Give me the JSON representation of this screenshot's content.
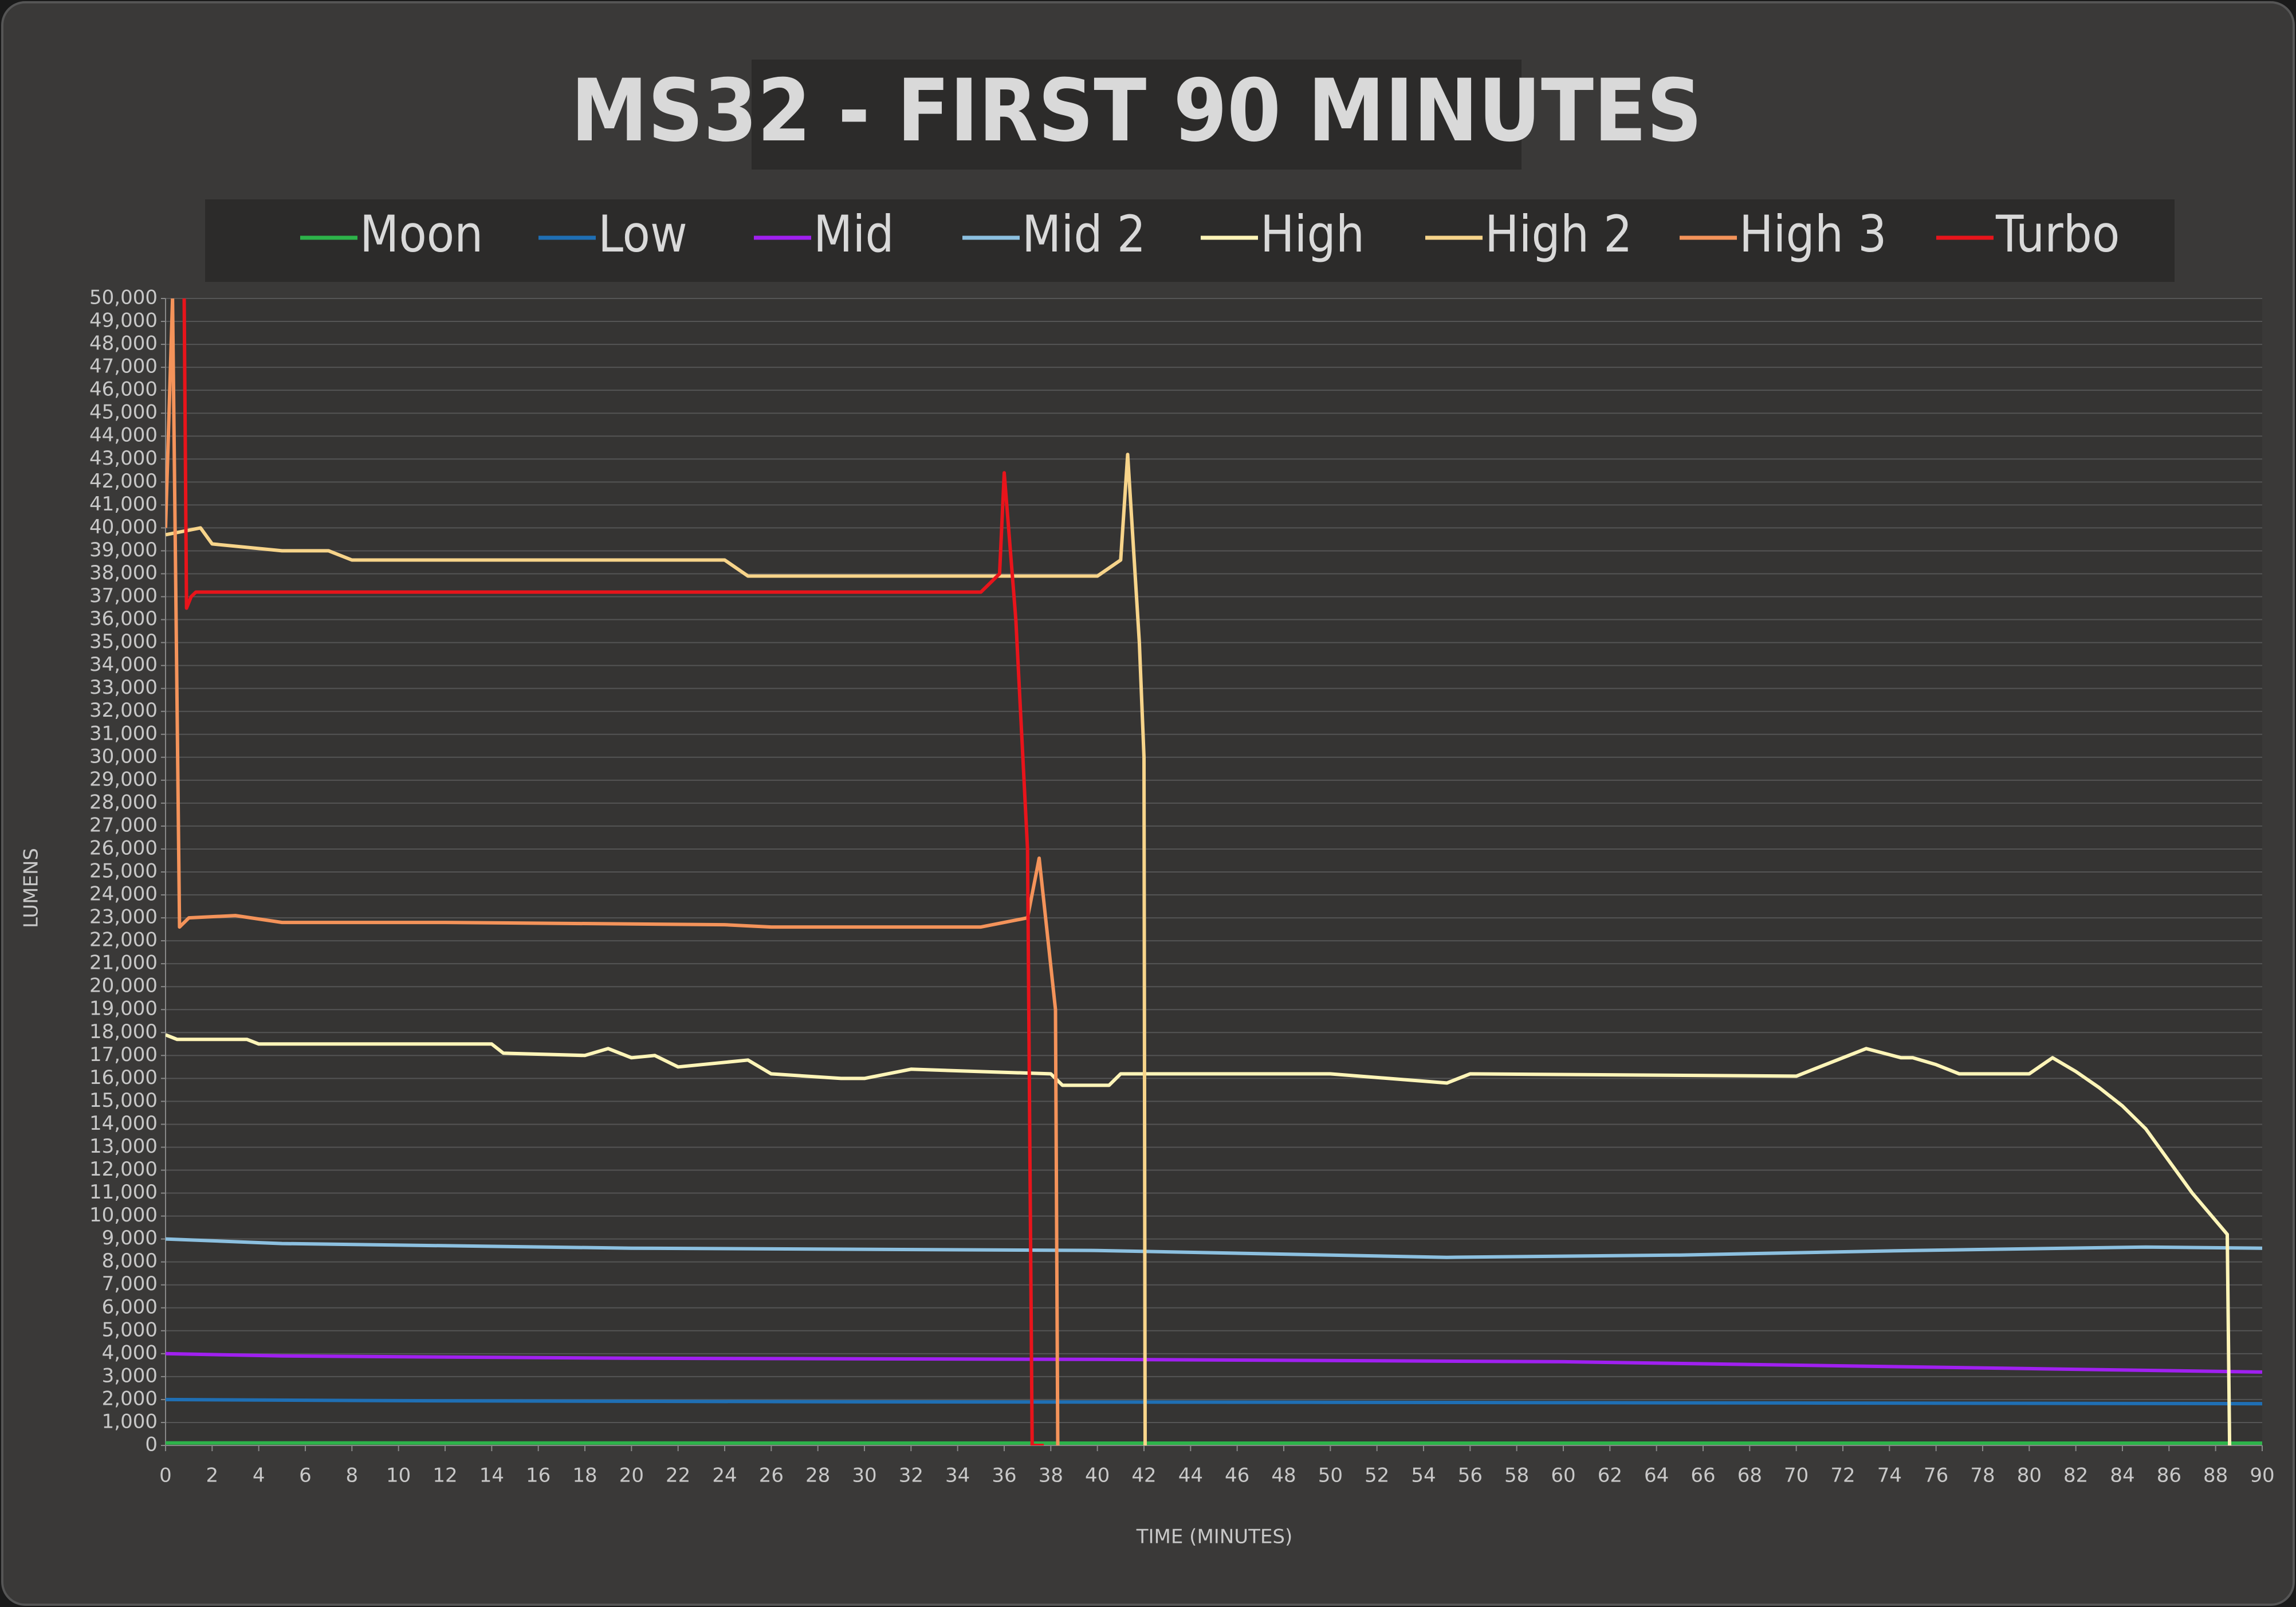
{
  "chart_data": {
    "type": "line",
    "title": "MS32 - FIRST 90 MINUTES",
    "xlabel": "TIME (MINUTES)",
    "ylabel": "LUMENS",
    "grid": true,
    "legend": "top",
    "xlim": [
      0,
      90
    ],
    "ylim": [
      0,
      50000
    ],
    "xticks": [
      0,
      2,
      4,
      6,
      8,
      10,
      12,
      14,
      16,
      18,
      20,
      22,
      24,
      26,
      28,
      30,
      32,
      34,
      36,
      38,
      40,
      42,
      44,
      46,
      48,
      50,
      52,
      54,
      56,
      58,
      60,
      62,
      64,
      66,
      68,
      70,
      72,
      74,
      76,
      78,
      80,
      82,
      84,
      86,
      88,
      90
    ],
    "yticks": [
      0,
      {
        "value": 1000,
        "label": "1,000"
      },
      {
        "value": 2000,
        "label": "2,000"
      },
      {
        "value": 3000,
        "label": "3,000"
      },
      {
        "value": 4000,
        "label": "4,000"
      },
      {
        "value": 5000,
        "label": "5,000"
      },
      {
        "value": 6000,
        "label": "6,000"
      },
      {
        "value": 7000,
        "label": "7,000"
      },
      {
        "value": 8000,
        "label": "8,000"
      },
      {
        "value": 9000,
        "label": "9,000"
      },
      {
        "value": 10000,
        "label": "10,000"
      },
      {
        "value": 11000,
        "label": "11,000"
      },
      {
        "value": 12000,
        "label": "12,000"
      },
      {
        "value": 13000,
        "label": "13,000"
      },
      {
        "value": 14000,
        "label": "14,000"
      },
      {
        "value": 15000,
        "label": "15,000"
      },
      {
        "value": 16000,
        "label": "16,000"
      },
      {
        "value": 17000,
        "label": "17,000"
      },
      {
        "value": 18000,
        "label": "18,000"
      },
      {
        "value": 19000,
        "label": "19,000"
      },
      {
        "value": 20000,
        "label": "20,000"
      },
      {
        "value": 21000,
        "label": "21,000"
      },
      {
        "value": 22000,
        "label": "22,000"
      },
      {
        "value": 23000,
        "label": "23,000"
      },
      {
        "value": 24000,
        "label": "24,000"
      },
      {
        "value": 25000,
        "label": "25,000"
      },
      {
        "value": 26000,
        "label": "26,000"
      },
      {
        "value": 27000,
        "label": "27,000"
      },
      {
        "value": 28000,
        "label": "28,000"
      },
      {
        "value": 29000,
        "label": "29,000"
      },
      {
        "value": 30000,
        "label": "30,000"
      },
      {
        "value": 31000,
        "label": "31,000"
      },
      {
        "value": 32000,
        "label": "32,000"
      },
      {
        "value": 33000,
        "label": "33,000"
      },
      {
        "value": 34000,
        "label": "34,000"
      },
      {
        "value": 35000,
        "label": "35,000"
      },
      {
        "value": 36000,
        "label": "36,000"
      },
      {
        "value": 37000,
        "label": "37,000"
      },
      {
        "value": 38000,
        "label": "38,000"
      },
      {
        "value": 39000,
        "label": "39,000"
      },
      {
        "value": 40000,
        "label": "40,000"
      },
      {
        "value": 41000,
        "label": "41,000"
      },
      {
        "value": 42000,
        "label": "42,000"
      },
      {
        "value": 43000,
        "label": "43,000"
      },
      {
        "value": 44000,
        "label": "44,000"
      },
      {
        "value": 45000,
        "label": "45,000"
      },
      {
        "value": 46000,
        "label": "46,000"
      },
      {
        "value": 47000,
        "label": "47,000"
      },
      {
        "value": 48000,
        "label": "48,000"
      },
      {
        "value": 49000,
        "label": "49,000"
      },
      {
        "value": 50000,
        "label": "50,000"
      }
    ],
    "series": [
      {
        "name": "Moon",
        "color": "#2db34a",
        "x": [
          0,
          45,
          90
        ],
        "values": [
          110,
          100,
          100
        ]
      },
      {
        "name": "Low",
        "color": "#1f6fb4",
        "x": [
          0,
          10,
          30,
          50,
          70,
          90
        ],
        "values": [
          2000,
          1950,
          1900,
          1880,
          1850,
          1820
        ]
      },
      {
        "name": "Mid",
        "color": "#a020f0",
        "x": [
          0,
          5,
          20,
          40,
          60,
          80,
          90
        ],
        "values": [
          4000,
          3900,
          3800,
          3750,
          3650,
          3350,
          3200
        ]
      },
      {
        "name": "Mid 2",
        "color": "#8cc0e0",
        "x": [
          0,
          5,
          20,
          40,
          55,
          65,
          75,
          85,
          90
        ],
        "values": [
          9000,
          8800,
          8600,
          8500,
          8200,
          8300,
          8500,
          8650,
          8600
        ]
      },
      {
        "name": "High",
        "color": "#fff5b8",
        "x": [
          0,
          0.5,
          3.5,
          4,
          14,
          14.5,
          18,
          19,
          20,
          21,
          22,
          25,
          26,
          29,
          30,
          32,
          38,
          38.5,
          40.5,
          41,
          50,
          55,
          56,
          70,
          71,
          72,
          73,
          74.5,
          75,
          76,
          77,
          80,
          81,
          82,
          83,
          84,
          85,
          86,
          87,
          88,
          88.5,
          88.6
        ],
        "values": [
          17900,
          17700,
          17700,
          17500,
          17500,
          17100,
          17000,
          17300,
          16900,
          17000,
          16500,
          16800,
          16200,
          16000,
          16000,
          16400,
          16200,
          15700,
          15700,
          16200,
          16200,
          15800,
          16200,
          16100,
          16500,
          16900,
          17300,
          16900,
          16900,
          16600,
          16200,
          16200,
          16900,
          16300,
          15600,
          14800,
          13800,
          12400,
          11000,
          9800,
          9200,
          0
        ]
      },
      {
        "name": "High 2",
        "color": "#f7d48a",
        "x": [
          0,
          1.5,
          2,
          5,
          7,
          8,
          16,
          24,
          25,
          40,
          41,
          41.3,
          41.8,
          42,
          42.05
        ],
        "values": [
          39700,
          40000,
          39300,
          39000,
          39000,
          38600,
          38600,
          38600,
          37900,
          37900,
          38600,
          43200,
          35000,
          30000,
          0
        ]
      },
      {
        "name": "High 3",
        "color": "#f4935a",
        "x": [
          0,
          0.3,
          0.6,
          1,
          3,
          5,
          12,
          24,
          26,
          35,
          37,
          37.5,
          38.2,
          38.3
        ],
        "values": [
          40000,
          50000,
          22600,
          23000,
          23100,
          22800,
          22800,
          22700,
          22600,
          22600,
          23000,
          25600,
          19000,
          0
        ]
      },
      {
        "name": "Turbo",
        "color": "#e8141b",
        "x": [
          0.8,
          0.9,
          1.1,
          1.3,
          27,
          35,
          35.8,
          36,
          36.5,
          37,
          37.2,
          37.7
        ],
        "values": [
          50000,
          36500,
          37000,
          37200,
          37200,
          37200,
          38000,
          42400,
          36000,
          26000,
          0,
          0
        ]
      }
    ]
  }
}
